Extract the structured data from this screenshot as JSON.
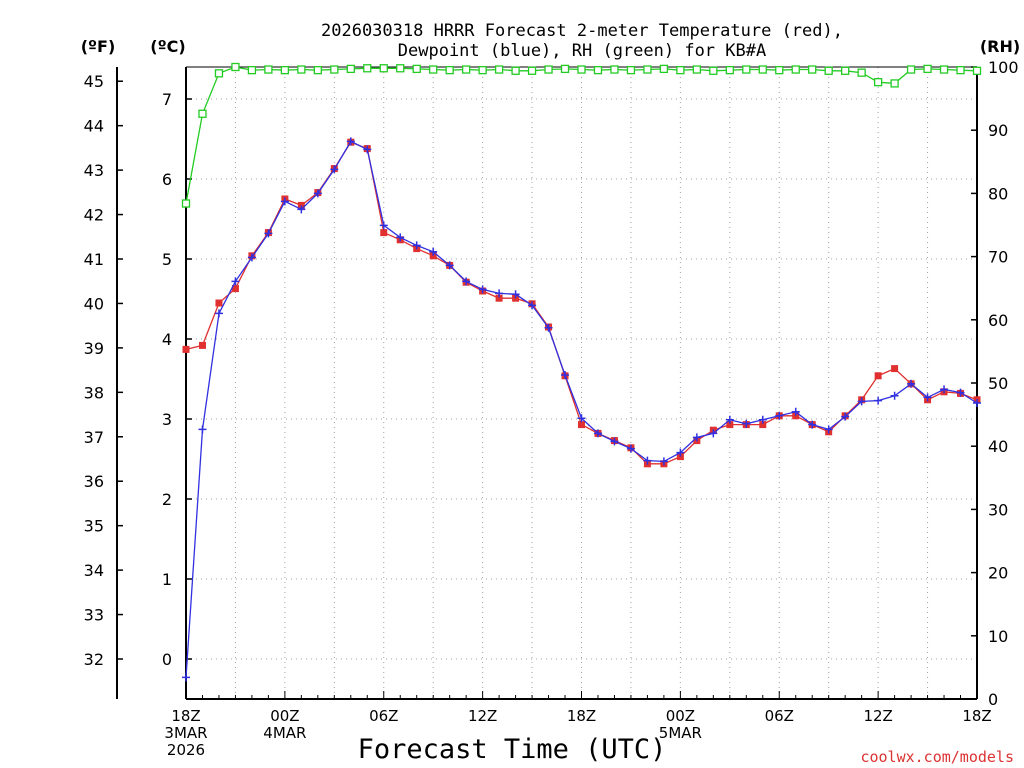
{
  "chart_data": {
    "type": "line",
    "title_line1": "2026030318 HRRR Forecast 2-meter Temperature (red),",
    "title_line2": "Dewpoint (blue), RH (green) for KB#A",
    "xlabel": "Forecast Time (UTC)",
    "watermark": "coolwx.com/models",
    "units": {
      "fahrenheit": "(ºF)",
      "celsius": "(ºC)",
      "rh": "(RH)"
    },
    "x_range_hours": [
      0,
      48
    ],
    "x_ticks": [
      {
        "h": 0,
        "lines": [
          "18Z",
          "3MAR",
          "2026"
        ]
      },
      {
        "h": 6,
        "lines": [
          "00Z",
          "4MAR"
        ]
      },
      {
        "h": 12,
        "lines": [
          "06Z"
        ]
      },
      {
        "h": 18,
        "lines": [
          "12Z"
        ]
      },
      {
        "h": 24,
        "lines": [
          "18Z"
        ]
      },
      {
        "h": 30,
        "lines": [
          "00Z",
          "5MAR"
        ]
      },
      {
        "h": 36,
        "lines": [
          "06Z"
        ]
      },
      {
        "h": 42,
        "lines": [
          "12Z"
        ]
      },
      {
        "h": 48,
        "lines": [
          "18Z"
        ]
      }
    ],
    "celsius_axis": {
      "range": [
        -0.5,
        7.4
      ],
      "ticks": [
        0,
        1,
        2,
        3,
        4,
        5,
        6,
        7
      ]
    },
    "fahrenheit_ticks": [
      32,
      33,
      34,
      35,
      36,
      37,
      38,
      39,
      40,
      41,
      42,
      43,
      44,
      45
    ],
    "rh_axis": {
      "range": [
        0,
        100
      ],
      "ticks": [
        0,
        10,
        20,
        30,
        40,
        50,
        60,
        70,
        80,
        90,
        100
      ]
    },
    "series": [
      {
        "name": "Temperature",
        "unit": "C",
        "color": "#e03030",
        "marker": "square-filled",
        "values": [
          3.87,
          3.92,
          4.45,
          4.63,
          5.04,
          5.33,
          5.75,
          5.67,
          5.83,
          6.13,
          6.46,
          6.38,
          5.33,
          5.24,
          5.13,
          5.04,
          4.92,
          4.71,
          4.6,
          4.51,
          4.51,
          4.44,
          4.15,
          3.54,
          2.93,
          2.82,
          2.73,
          2.64,
          2.44,
          2.44,
          2.53,
          2.73,
          2.86,
          2.93,
          2.93,
          2.93,
          3.04,
          3.04,
          2.93,
          2.84,
          3.04,
          3.24,
          3.54,
          3.63,
          3.44,
          3.24,
          3.34,
          3.32,
          3.24
        ]
      },
      {
        "name": "Dewpoint",
        "unit": "C",
        "color": "#3030e0",
        "marker": "plus",
        "values": [
          -0.23,
          2.87,
          4.32,
          4.72,
          5.02,
          5.32,
          5.72,
          5.62,
          5.82,
          6.12,
          6.47,
          6.37,
          5.42,
          5.27,
          5.17,
          5.09,
          4.92,
          4.72,
          4.62,
          4.57,
          4.56,
          4.42,
          4.14,
          3.55,
          3.01,
          2.82,
          2.72,
          2.63,
          2.48,
          2.47,
          2.58,
          2.77,
          2.82,
          2.99,
          2.94,
          2.99,
          3.04,
          3.09,
          2.93,
          2.87,
          3.03,
          3.22,
          3.23,
          3.29,
          3.44,
          3.27,
          3.37,
          3.33,
          3.2
        ]
      },
      {
        "name": "Relative Humidity",
        "unit": "%",
        "color": "#22cc22",
        "marker": "square-open",
        "values": [
          78.4,
          92.6,
          99.0,
          100,
          99.5,
          99.6,
          99.5,
          99.6,
          99.5,
          99.6,
          99.7,
          99.8,
          99.8,
          99.8,
          99.7,
          99.6,
          99.5,
          99.6,
          99.5,
          99.6,
          99.4,
          99.4,
          99.6,
          99.7,
          99.6,
          99.5,
          99.6,
          99.5,
          99.6,
          99.7,
          99.5,
          99.6,
          99.4,
          99.5,
          99.6,
          99.6,
          99.5,
          99.6,
          99.6,
          99.4,
          99.4,
          99.1,
          97.6,
          97.4,
          99.6,
          99.7,
          99.6,
          99.5,
          99.4
        ]
      }
    ]
  }
}
